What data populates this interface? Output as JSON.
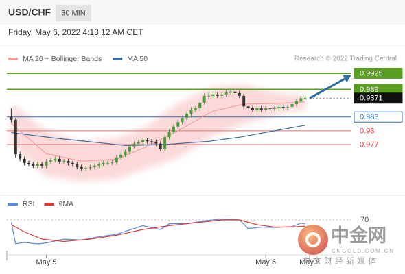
{
  "header": {
    "symbol": "USD/CHF",
    "interval": "30 MIN",
    "timestamp": "Friday, May 6, 2022 4:18:12 AM CET"
  },
  "chart_data": [
    {
      "type": "candlestick",
      "source": "Research © 2022 Trading Central",
      "xlim": [
        -1,
        78
      ],
      "ylim": [
        0.968,
        0.9945
      ],
      "up_color": "#4e9a3c",
      "down_color": "#333333",
      "open": [
        0.983,
        0.9824,
        0.9749,
        0.9739,
        0.973,
        0.9727,
        0.9724,
        0.9727,
        0.9724,
        0.9733,
        0.9736,
        0.9739,
        0.9733,
        0.9734,
        0.973,
        0.9727,
        0.9721,
        0.9718,
        0.9719,
        0.9721,
        0.9724,
        0.9727,
        0.973,
        0.973,
        0.9731,
        0.9742,
        0.9748,
        0.9754,
        0.9766,
        0.9772,
        0.9775,
        0.9779,
        0.9777,
        0.9776,
        0.9772,
        0.976,
        0.9786,
        0.9798,
        0.9809,
        0.9819,
        0.9828,
        0.9837,
        0.9846,
        0.9849,
        0.9861,
        0.9876,
        0.9876,
        0.9879,
        0.9876,
        0.9879,
        0.9883,
        0.9885,
        0.9882,
        0.9876,
        0.9853,
        0.9849,
        0.9846,
        0.9849,
        0.9846,
        0.9849,
        0.9848,
        0.9849,
        0.9852,
        0.985,
        0.9852,
        0.9858,
        0.9864,
        0.9871
      ],
      "high": [
        0.9849,
        0.9828,
        0.9754,
        0.9744,
        0.9735,
        0.9732,
        0.9732,
        0.9732,
        0.9738,
        0.9741,
        0.9744,
        0.9744,
        0.9739,
        0.9739,
        0.9735,
        0.9732,
        0.9726,
        0.9724,
        0.9726,
        0.9729,
        0.9732,
        0.9735,
        0.9735,
        0.9736,
        0.9747,
        0.9753,
        0.9759,
        0.9771,
        0.9777,
        0.978,
        0.9784,
        0.9784,
        0.9782,
        0.9781,
        0.9777,
        0.9791,
        0.9803,
        0.9814,
        0.9824,
        0.9833,
        0.9842,
        0.9851,
        0.9854,
        0.9866,
        0.9881,
        0.9883,
        0.9886,
        0.9884,
        0.9884,
        0.9888,
        0.989,
        0.989,
        0.9887,
        0.9881,
        0.9858,
        0.9854,
        0.9854,
        0.9854,
        0.9854,
        0.9854,
        0.9854,
        0.9857,
        0.9857,
        0.9857,
        0.9863,
        0.9869,
        0.9876,
        0.9878
      ],
      "low": [
        0.9818,
        0.9741,
        0.9734,
        0.9725,
        0.9722,
        0.9719,
        0.9719,
        0.9719,
        0.9719,
        0.9728,
        0.9731,
        0.9728,
        0.9728,
        0.9725,
        0.9722,
        0.9716,
        0.9713,
        0.9713,
        0.9714,
        0.9716,
        0.9719,
        0.9722,
        0.9725,
        0.9725,
        0.9726,
        0.9737,
        0.9743,
        0.9749,
        0.9761,
        0.9767,
        0.977,
        0.9772,
        0.9771,
        0.9767,
        0.9755,
        0.9755,
        0.9781,
        0.9793,
        0.9804,
        0.9814,
        0.9823,
        0.9832,
        0.9841,
        0.9844,
        0.9856,
        0.987,
        0.9871,
        0.9871,
        0.9871,
        0.9874,
        0.9878,
        0.9877,
        0.9871,
        0.9848,
        0.9844,
        0.9841,
        0.9841,
        0.9841,
        0.9841,
        0.9843,
        0.9843,
        0.9844,
        0.9845,
        0.9845,
        0.9847,
        0.9853,
        0.9859,
        0.9866
      ],
      "close": [
        0.9824,
        0.9749,
        0.9739,
        0.973,
        0.9727,
        0.9724,
        0.9727,
        0.9724,
        0.9733,
        0.9736,
        0.9739,
        0.9733,
        0.9734,
        0.973,
        0.9727,
        0.9721,
        0.9718,
        0.9719,
        0.9721,
        0.9724,
        0.9727,
        0.973,
        0.973,
        0.9731,
        0.9742,
        0.9748,
        0.9754,
        0.9766,
        0.9772,
        0.9775,
        0.9779,
        0.9777,
        0.9776,
        0.9772,
        0.976,
        0.9786,
        0.9798,
        0.9809,
        0.9819,
        0.9828,
        0.9837,
        0.9846,
        0.9849,
        0.9861,
        0.9876,
        0.9876,
        0.9879,
        0.9876,
        0.9879,
        0.9883,
        0.9885,
        0.9882,
        0.9876,
        0.9853,
        0.9849,
        0.9846,
        0.9849,
        0.9846,
        0.9849,
        0.9848,
        0.9849,
        0.9852,
        0.985,
        0.9852,
        0.9858,
        0.9864,
        0.9871,
        0.9871
      ],
      "series": [
        {
          "name": "MA 20 + Bollinger Bands",
          "color": "#f29c9c",
          "band_color": "#fbd9d9",
          "x": [
            0,
            8,
            16,
            24,
            30,
            38,
            46,
            53,
            62,
            67
          ],
          "values": [
            0.9816,
            0.975,
            0.9734,
            0.9738,
            0.9762,
            0.98,
            0.9843,
            0.9858,
            0.986,
            0.9863
          ],
          "upper": [
            0.986,
            0.98,
            0.9775,
            0.9785,
            0.9805,
            0.986,
            0.9895,
            0.99,
            0.988,
            0.9878
          ],
          "lower": [
            0.9772,
            0.97,
            0.969,
            0.9695,
            0.9715,
            0.974,
            0.979,
            0.9815,
            0.984,
            0.9846
          ]
        },
        {
          "name": "MA 50",
          "color": "#3d6b9c",
          "x": [
            0,
            10,
            20,
            26,
            35,
            45,
            52,
            60,
            67
          ],
          "values": [
            0.9796,
            0.9784,
            0.9774,
            0.9768,
            0.977,
            0.9777,
            0.9786,
            0.98,
            0.9812
          ]
        }
      ],
      "levels": [
        {
          "value": 0.9925,
          "color": "#5a9e22",
          "label_fill": "#5a9e22",
          "label_text": "#ffffff",
          "style": "strong"
        },
        {
          "value": 0.989,
          "color": "#5a9e22",
          "label_fill": "#5a9e22",
          "label_text": "#ffffff",
          "style": "strong"
        },
        {
          "value": 0.9871,
          "color": "#777777",
          "label_fill": "#111111",
          "label_text": "#ffffff",
          "style": "dotted"
        },
        {
          "value": 0.983,
          "color": "#2f6db0",
          "label_fill": "#ffffff",
          "label_text": "#2f6db0",
          "style": "thin"
        },
        {
          "value": 0.98,
          "color": "#e07070",
          "label_text": "#d63c3c",
          "style": "thin"
        },
        {
          "value": 0.977,
          "color": "#e07070",
          "label_text": "#d63c3c",
          "style": "thin"
        }
      ],
      "forecast": {
        "color": "#2b6ca3",
        "x": [
          68,
          77.5
        ],
        "values": [
          0.9871,
          0.9921
        ]
      }
    },
    {
      "type": "line",
      "xlim": [
        -1,
        78
      ],
      "ylim": [
        0,
        100
      ],
      "yticks": [
        70
      ],
      "xticks": [
        {
          "value": 8,
          "label": "May 5"
        },
        {
          "value": 58,
          "label": "May 6"
        },
        {
          "value": 68,
          "label": "May 8"
        }
      ],
      "series": [
        {
          "name": "RSI",
          "color": "#5b8bd6",
          "x": [
            0,
            1,
            3,
            6,
            8,
            12,
            16,
            20,
            24,
            28,
            30,
            34,
            36,
            40,
            44,
            48,
            52,
            54,
            57,
            60,
            64,
            66,
            67
          ],
          "values": [
            65,
            20,
            23,
            20,
            22,
            30,
            28,
            35,
            40,
            52,
            58,
            50,
            62,
            62,
            68,
            72,
            70,
            52,
            55,
            54,
            56,
            63,
            62
          ]
        },
        {
          "name": "9MA",
          "color": "#d93a3a",
          "x": [
            0,
            3,
            7,
            12,
            18,
            24,
            30,
            36,
            42,
            48,
            52,
            56,
            60,
            64,
            67
          ],
          "values": [
            60,
            45,
            30,
            25,
            30,
            38,
            50,
            58,
            64,
            70,
            70,
            60,
            55,
            55,
            57
          ]
        }
      ]
    }
  ],
  "watermark": {
    "brand": "中金网",
    "domain": "CNGOLD.COM.CN",
    "slogan": "中文财经新媒体"
  }
}
